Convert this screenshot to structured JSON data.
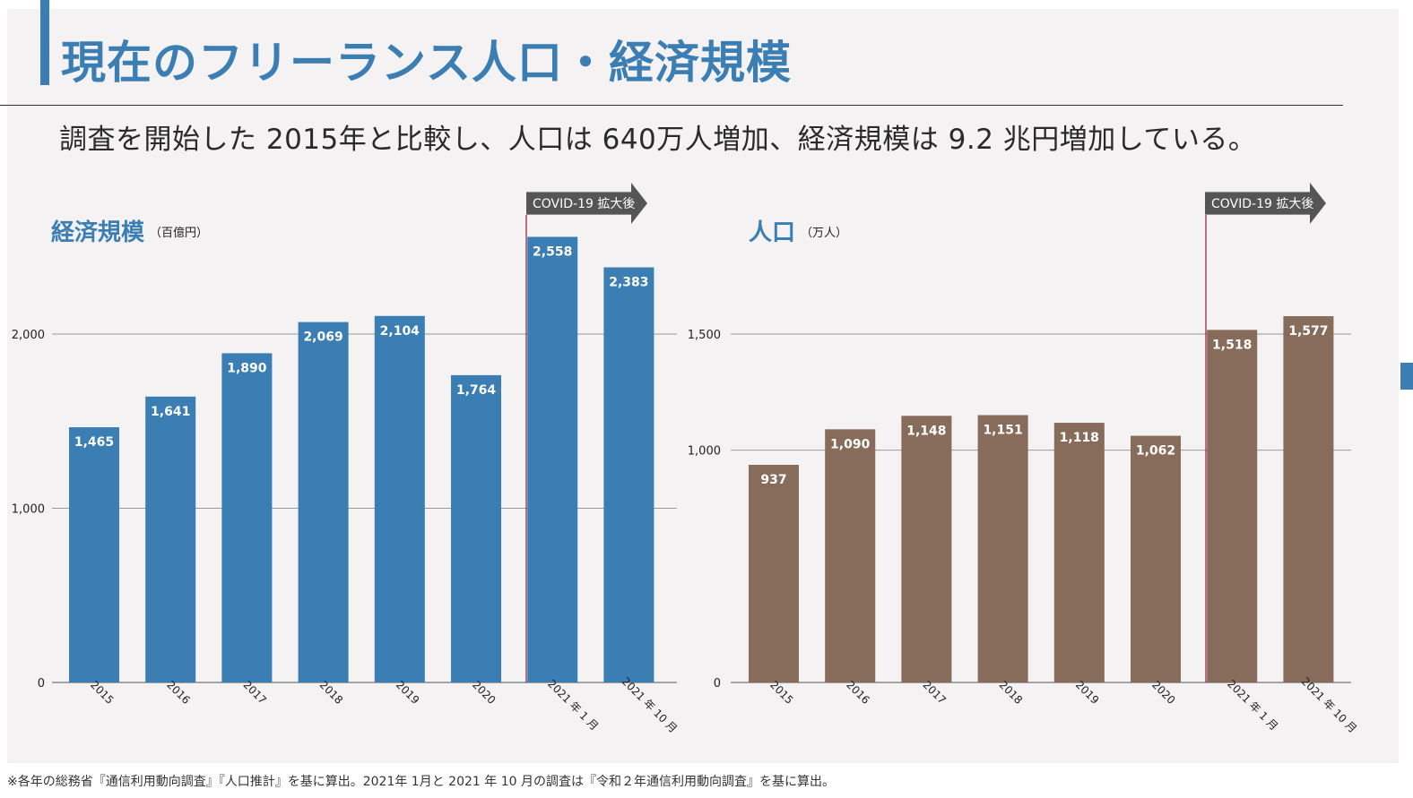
{
  "header": {
    "title": "現在のフリーランス人口・経済規模",
    "lead": "調査を開始した 2015年と比較し、人口は 640万人増加、経済規模は 9.2 兆円増加している。"
  },
  "footnote": "※各年の総務省『通信利用動向調査』『人口推計』を基に算出。2021年 1月と 2021 年 10 月の調査は『令和２年通信利用動向調査』を基に算出。",
  "chart_data": [
    {
      "type": "bar",
      "title": "経済規模",
      "unit": "（百億円）",
      "categories": [
        "2015",
        "2016",
        "2017",
        "2018",
        "2019",
        "2020",
        "2021 年 1 月",
        "2021 年 10 月"
      ],
      "values": [
        1465,
        1641,
        1890,
        2069,
        2104,
        1764,
        2558,
        2383
      ],
      "value_labels": [
        "1,465",
        "1,641",
        "1,890",
        "2,069",
        "2,104",
        "1,764",
        "2,558",
        "2,383"
      ],
      "yticks": [
        0,
        1000,
        2000
      ],
      "ytick_labels": [
        "0",
        "1,000",
        "2,000"
      ],
      "ylim": [
        0,
        2700
      ],
      "bar_color": "#3b7eb3",
      "annotation": "COVID-19 拡大後",
      "annotation_start_category": "2021 年 1 月",
      "grid": true
    },
    {
      "type": "bar",
      "title": "人口",
      "unit": "（万人）",
      "categories": [
        "2015",
        "2016",
        "2017",
        "2018",
        "2019",
        "2020",
        "2021 年 1 月",
        "2021 年 10 月"
      ],
      "values": [
        937,
        1090,
        1148,
        1151,
        1118,
        1062,
        1518,
        1577
      ],
      "value_labels": [
        "937",
        "1,090",
        "1,148",
        "1,151",
        "1,118",
        "1,062",
        "1,518",
        "1,577"
      ],
      "yticks": [
        0,
        1000,
        1500
      ],
      "ytick_labels": [
        "0",
        "1,000",
        "1,500"
      ],
      "ylim": [
        0,
        1777
      ],
      "bar_color": "#876c5b",
      "annotation": "COVID-19 拡大後",
      "annotation_start_category": "2021 年 1 月",
      "grid": true
    }
  ]
}
